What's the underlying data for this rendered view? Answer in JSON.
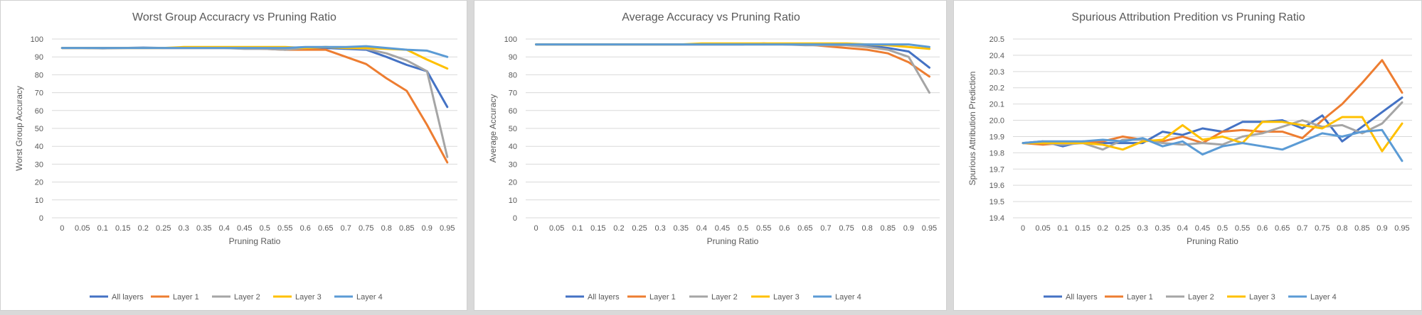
{
  "chart_data": [
    {
      "type": "line",
      "title": "Worst Group Accuracry vs Pruning Ratio",
      "xlabel": "Pruning Ratio",
      "ylabel": "Worst Group Accuracy",
      "ylim": [
        0,
        100
      ],
      "ystep": 10,
      "ytick_decimals": 0,
      "grid": true,
      "legend": "bottom",
      "x": [
        "0",
        "0.05",
        "0.1",
        "0.15",
        "0.2",
        "0.25",
        "0.3",
        "0.35",
        "0.4",
        "0.45",
        "0.5",
        "0.55",
        "0.6",
        "0.65",
        "0.7",
        "0.75",
        "0.8",
        "0.85",
        "0.9",
        "0.95"
      ],
      "series": [
        {
          "name": "All layers",
          "color": "#4472C4",
          "values": [
            95,
            95,
            94.8,
            95,
            95.2,
            95,
            95,
            95,
            95,
            95,
            95,
            95,
            95,
            95,
            94.5,
            94,
            90,
            85.5,
            82,
            62
          ]
        },
        {
          "name": "Layer 1",
          "color": "#ED7D31",
          "values": [
            95,
            95,
            95,
            95,
            95,
            95,
            95,
            95,
            95,
            95,
            94.5,
            94,
            94,
            94,
            90,
            86,
            78,
            71,
            52,
            31
          ]
        },
        {
          "name": "Layer 2",
          "color": "#A5A5A5",
          "values": [
            95,
            95,
            95,
            95,
            95,
            95,
            95,
            95,
            95,
            94.5,
            94.5,
            94,
            95,
            95.5,
            95,
            94.5,
            92,
            88,
            82,
            34
          ]
        },
        {
          "name": "Layer 3",
          "color": "#FFC000",
          "values": [
            95,
            95,
            95,
            95,
            95,
            95,
            95.5,
            95.5,
            95.5,
            95.5,
            95.5,
            95.5,
            95,
            95.5,
            95,
            95,
            94.5,
            94,
            88.5,
            83.5
          ]
        },
        {
          "name": "Layer 4",
          "color": "#5B9BD5",
          "values": [
            95,
            95,
            95,
            95,
            95,
            95,
            95,
            95,
            95,
            95,
            95,
            95,
            95.5,
            95.5,
            95.5,
            96,
            95,
            94,
            93.5,
            90
          ]
        }
      ]
    },
    {
      "type": "line",
      "title": "Average Accuracy vs Pruning Ratio",
      "xlabel": "Pruning Ratio",
      "ylabel": "Average Accuracy",
      "ylim": [
        0,
        100
      ],
      "ystep": 10,
      "ytick_decimals": 0,
      "grid": true,
      "legend": "bottom",
      "x": [
        "0",
        "0.05",
        "0.1",
        "0.15",
        "0.2",
        "0.25",
        "0.3",
        "0.35",
        "0.4",
        "0.45",
        "0.5",
        "0.55",
        "0.6",
        "0.65",
        "0.7",
        "0.75",
        "0.8",
        "0.85",
        "0.9",
        "0.95"
      ],
      "series": [
        {
          "name": "All layers",
          "color": "#4472C4",
          "values": [
            97,
            97,
            97,
            97,
            97,
            97,
            97,
            97,
            97,
            97,
            97,
            97.5,
            97,
            97,
            97,
            97,
            96.5,
            95,
            93,
            84
          ]
        },
        {
          "name": "Layer 1",
          "color": "#ED7D31",
          "values": [
            97,
            97,
            97,
            97,
            97,
            97,
            97,
            97,
            97,
            97,
            97,
            97,
            97,
            97,
            96,
            95,
            94,
            92,
            87,
            79
          ]
        },
        {
          "name": "Layer 2",
          "color": "#A5A5A5",
          "values": [
            97,
            97,
            97,
            97,
            97,
            97,
            97,
            97,
            97,
            97,
            97,
            97,
            97,
            96.5,
            96.5,
            96.5,
            95.5,
            94,
            90,
            70
          ]
        },
        {
          "name": "Layer 3",
          "color": "#FFC000",
          "values": [
            97,
            97,
            97,
            97,
            97,
            97,
            97,
            97,
            97.5,
            97.5,
            97.5,
            97.5,
            97.5,
            97.5,
            97.5,
            97.5,
            97,
            96.5,
            95.5,
            94.5
          ]
        },
        {
          "name": "Layer 4",
          "color": "#5B9BD5",
          "values": [
            97,
            97,
            97,
            97,
            97,
            97,
            97,
            97,
            97,
            97,
            97,
            97,
            97,
            97,
            97,
            97,
            97,
            97,
            97,
            95.5
          ]
        }
      ]
    },
    {
      "type": "line",
      "title": "Spurious Attribution Predition vs Pruning Ratio",
      "xlabel": "Pruning Ratio",
      "ylabel": "Spurious Attribution Prediction",
      "ylim": [
        19.4,
        20.5
      ],
      "ystep": 0.1,
      "ytick_decimals": 1,
      "grid": true,
      "legend": "bottom",
      "x": [
        "0",
        "0.05",
        "0.1",
        "0.15",
        "0.2",
        "0.25",
        "0.3",
        "0.35",
        "0.4",
        "0.45",
        "0.5",
        "0.55",
        "0.6",
        "0.65",
        "0.7",
        "0.75",
        "0.8",
        "0.85",
        "0.9",
        "0.95"
      ],
      "series": [
        {
          "name": "All layers",
          "color": "#4472C4",
          "values": [
            19.86,
            19.87,
            19.84,
            19.87,
            19.86,
            19.86,
            19.86,
            19.93,
            19.91,
            19.95,
            19.93,
            19.99,
            19.99,
            20.0,
            19.95,
            20.03,
            19.87,
            19.96,
            20.05,
            20.14
          ]
        },
        {
          "name": "Layer 1",
          "color": "#ED7D31",
          "values": [
            19.86,
            19.85,
            19.86,
            19.86,
            19.87,
            19.9,
            19.88,
            19.87,
            19.9,
            19.86,
            19.93,
            19.94,
            19.93,
            19.93,
            19.89,
            20.0,
            20.1,
            20.23,
            20.37,
            20.17
          ]
        },
        {
          "name": "Layer 2",
          "color": "#A5A5A5",
          "values": [
            19.86,
            19.86,
            19.85,
            19.86,
            19.82,
            19.88,
            19.88,
            19.86,
            19.85,
            19.86,
            19.85,
            19.9,
            19.92,
            19.96,
            20.0,
            19.96,
            19.97,
            19.92,
            19.98,
            20.11
          ]
        },
        {
          "name": "Layer 3",
          "color": "#FFC000",
          "values": [
            19.86,
            19.86,
            19.86,
            19.86,
            19.85,
            19.82,
            19.87,
            19.88,
            19.97,
            19.88,
            19.9,
            19.86,
            19.99,
            19.99,
            19.97,
            19.95,
            20.02,
            20.02,
            19.81,
            19.98
          ]
        },
        {
          "name": "Layer 4",
          "color": "#5B9BD5",
          "values": [
            19.86,
            19.87,
            19.87,
            19.87,
            19.88,
            19.87,
            19.89,
            19.84,
            19.87,
            19.79,
            19.84,
            19.86,
            19.84,
            19.82,
            19.87,
            19.92,
            19.9,
            19.93,
            19.94,
            19.75
          ]
        }
      ]
    }
  ]
}
